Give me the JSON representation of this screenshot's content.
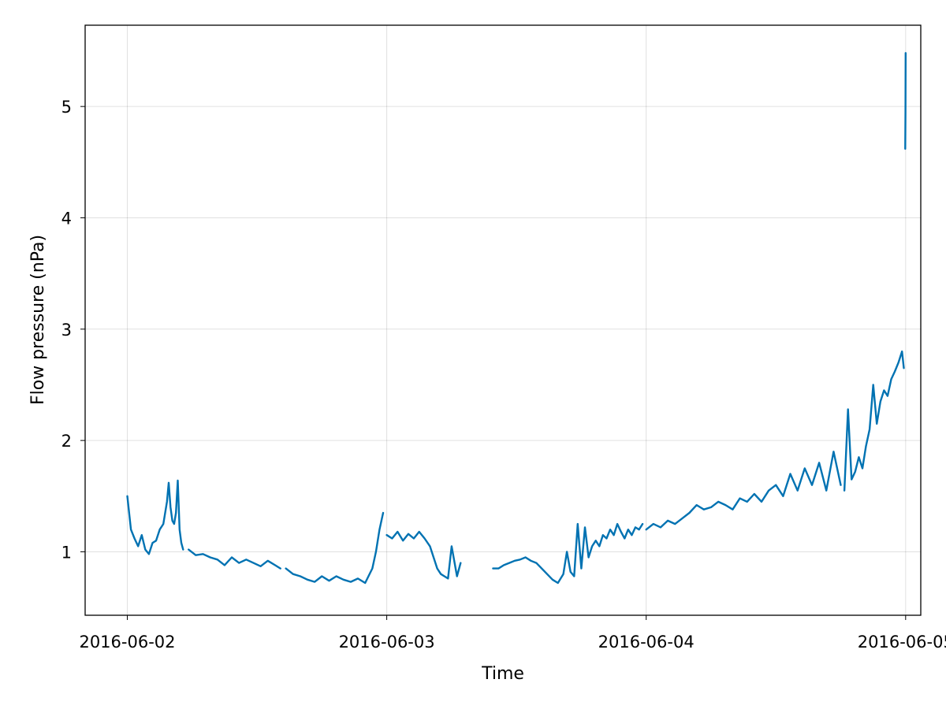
{
  "chart_data": {
    "type": "line",
    "title": "",
    "xlabel": "Time",
    "ylabel": "Flow pressure (nPa)",
    "x_ticks": [
      "2016-06-02",
      "2016-06-03",
      "2016-06-04",
      "2016-06-05"
    ],
    "y_ticks": [
      1,
      2,
      3,
      4,
      5
    ],
    "xlim": [
      "2016-06-01T20:06",
      "2016-06-05T01:24"
    ],
    "ylim": [
      0.43,
      5.73
    ],
    "grid": true,
    "legend": "none",
    "colors": {
      "series": "#0072b2",
      "grid": "#e6e6e6",
      "axis": "#000000"
    },
    "series": [
      {
        "segments": [
          {
            "x": [
              "2016-06-02T00:00",
              "2016-06-02T00:20",
              "2016-06-02T00:40",
              "2016-06-02T01:00",
              "2016-06-02T01:20",
              "2016-06-02T01:40",
              "2016-06-02T02:00",
              "2016-06-02T02:20",
              "2016-06-02T02:40",
              "2016-06-02T03:00",
              "2016-06-02T03:20",
              "2016-06-02T03:40",
              "2016-06-02T03:50",
              "2016-06-02T04:00",
              "2016-06-02T04:10",
              "2016-06-02T04:20",
              "2016-06-02T04:30",
              "2016-06-02T04:40",
              "2016-06-02T04:50",
              "2016-06-02T05:00",
              "2016-06-02T05:10"
            ],
            "y": [
              1.5,
              1.2,
              1.12,
              1.05,
              1.15,
              1.02,
              0.98,
              1.08,
              1.1,
              1.2,
              1.25,
              1.45,
              1.62,
              1.4,
              1.28,
              1.25,
              1.35,
              1.64,
              1.2,
              1.08,
              1.02
            ]
          },
          {
            "x": [
              "2016-06-02T05:40",
              "2016-06-02T06:20",
              "2016-06-02T07:00",
              "2016-06-02T07:40",
              "2016-06-02T08:20",
              "2016-06-02T09:00",
              "2016-06-02T09:40",
              "2016-06-02T10:20",
              "2016-06-02T11:00",
              "2016-06-02T11:40",
              "2016-06-02T12:20",
              "2016-06-02T13:00",
              "2016-06-02T13:40",
              "2016-06-02T14:10"
            ],
            "y": [
              1.02,
              0.97,
              0.98,
              0.95,
              0.93,
              0.88,
              0.95,
              0.9,
              0.93,
              0.9,
              0.87,
              0.92,
              0.88,
              0.85
            ]
          },
          {
            "x": [
              "2016-06-02T14:40",
              "2016-06-02T15:20",
              "2016-06-02T16:00",
              "2016-06-02T16:40",
              "2016-06-02T17:20",
              "2016-06-02T18:00",
              "2016-06-02T18:40",
              "2016-06-02T19:20",
              "2016-06-02T20:00",
              "2016-06-02T20:40",
              "2016-06-02T21:20",
              "2016-06-02T22:00",
              "2016-06-02T22:40",
              "2016-06-02T23:00",
              "2016-06-02T23:20",
              "2016-06-02T23:40"
            ],
            "y": [
              0.85,
              0.8,
              0.78,
              0.75,
              0.73,
              0.78,
              0.74,
              0.78,
              0.75,
              0.73,
              0.76,
              0.72,
              0.85,
              1.0,
              1.2,
              1.35
            ]
          },
          {
            "x": [
              "2016-06-03T00:00",
              "2016-06-03T00:30",
              "2016-06-03T01:00",
              "2016-06-03T01:30",
              "2016-06-03T02:00",
              "2016-06-03T02:30",
              "2016-06-03T03:00",
              "2016-06-03T03:30",
              "2016-06-03T04:00",
              "2016-06-03T04:20",
              "2016-06-03T04:40",
              "2016-06-03T05:00",
              "2016-06-03T05:20",
              "2016-06-03T05:40",
              "2016-06-03T06:00",
              "2016-06-03T06:30",
              "2016-06-03T06:50"
            ],
            "y": [
              1.15,
              1.12,
              1.18,
              1.1,
              1.16,
              1.12,
              1.18,
              1.12,
              1.05,
              0.95,
              0.85,
              0.8,
              0.78,
              0.76,
              1.05,
              0.78,
              0.9
            ]
          },
          {
            "x": [
              "2016-06-03T09:50",
              "2016-06-03T10:20",
              "2016-06-03T10:50",
              "2016-06-03T11:20",
              "2016-06-03T11:50",
              "2016-06-03T12:20",
              "2016-06-03T12:50",
              "2016-06-03T13:20",
              "2016-06-03T13:50",
              "2016-06-03T14:20",
              "2016-06-03T14:50",
              "2016-06-03T15:20",
              "2016-06-03T15:50",
              "2016-06-03T16:20",
              "2016-06-03T16:40",
              "2016-06-03T17:00",
              "2016-06-03T17:20",
              "2016-06-03T17:40",
              "2016-06-03T18:00",
              "2016-06-03T18:20",
              "2016-06-03T18:40",
              "2016-06-03T19:00",
              "2016-06-03T19:20",
              "2016-06-03T19:40",
              "2016-06-03T20:00",
              "2016-06-03T20:20",
              "2016-06-03T20:40",
              "2016-06-03T21:00",
              "2016-06-03T21:20",
              "2016-06-03T21:40",
              "2016-06-03T22:00",
              "2016-06-03T22:20",
              "2016-06-03T22:40",
              "2016-06-03T23:00",
              "2016-06-03T23:20",
              "2016-06-03T23:40"
            ],
            "y": [
              0.85,
              0.85,
              0.88,
              0.9,
              0.92,
              0.93,
              0.95,
              0.92,
              0.9,
              0.85,
              0.8,
              0.75,
              0.72,
              0.8,
              1.0,
              0.82,
              0.78,
              1.25,
              0.85,
              1.22,
              0.95,
              1.05,
              1.1,
              1.05,
              1.15,
              1.12,
              1.2,
              1.15,
              1.25,
              1.18,
              1.12,
              1.2,
              1.15,
              1.22,
              1.2,
              1.25
            ]
          },
          {
            "x": [
              "2016-06-04T00:00",
              "2016-06-04T00:40",
              "2016-06-04T01:20",
              "2016-06-04T02:00",
              "2016-06-04T02:40",
              "2016-06-04T03:20",
              "2016-06-04T04:00",
              "2016-06-04T04:40",
              "2016-06-04T05:20",
              "2016-06-04T06:00",
              "2016-06-04T06:40",
              "2016-06-04T07:20",
              "2016-06-04T08:00",
              "2016-06-04T08:40",
              "2016-06-04T09:20",
              "2016-06-04T10:00",
              "2016-06-04T10:40",
              "2016-06-04T11:20",
              "2016-06-04T12:00",
              "2016-06-04T12:40",
              "2016-06-04T13:20",
              "2016-06-04T14:00",
              "2016-06-04T14:40",
              "2016-06-04T15:20",
              "2016-06-04T16:00",
              "2016-06-04T16:40",
              "2016-06-04T17:20",
              "2016-06-04T18:00"
            ],
            "y": [
              1.2,
              1.25,
              1.22,
              1.28,
              1.25,
              1.3,
              1.35,
              1.42,
              1.38,
              1.4,
              1.45,
              1.42,
              1.38,
              1.48,
              1.45,
              1.52,
              1.45,
              1.55,
              1.6,
              1.5,
              1.7,
              1.55,
              1.75,
              1.6,
              1.8,
              1.55,
              1.9,
              1.6
            ]
          },
          {
            "x": [
              "2016-06-04T18:20",
              "2016-06-04T18:40",
              "2016-06-04T19:00",
              "2016-06-04T19:20",
              "2016-06-04T19:40",
              "2016-06-04T20:00",
              "2016-06-04T20:20",
              "2016-06-04T20:40",
              "2016-06-04T21:00",
              "2016-06-04T21:20",
              "2016-06-04T21:40",
              "2016-06-04T22:00",
              "2016-06-04T22:20",
              "2016-06-04T22:40",
              "2016-06-04T23:00",
              "2016-06-04T23:20",
              "2016-06-04T23:40",
              "2016-06-04T23:50"
            ],
            "y": [
              1.55,
              2.28,
              1.65,
              1.72,
              1.85,
              1.75,
              1.95,
              2.1,
              2.5,
              2.15,
              2.35,
              2.45,
              2.4,
              2.55,
              2.62,
              2.7,
              2.8,
              2.65
            ]
          },
          {
            "x": [
              "2016-06-04T23:58",
              "2016-06-04T23:59",
              "2016-06-05T00:00"
            ],
            "y": [
              4.62,
              4.95,
              5.48
            ]
          }
        ]
      }
    ]
  }
}
